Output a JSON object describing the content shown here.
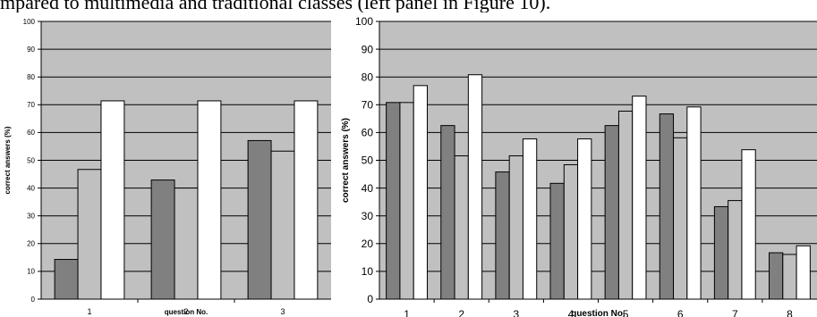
{
  "caption": "mpared to multimedia and traditional classes (left panel in Figure 10).",
  "chart_data": [
    {
      "type": "bar",
      "panel": "left",
      "categories": [
        "1",
        "2",
        "3"
      ],
      "series": [
        {
          "values": [
            14.3,
            42.9,
            57.1
          ],
          "color": "#808080"
        },
        {
          "values": [
            46.7,
            40.0,
            53.3
          ],
          "color": "#c0c0c0"
        },
        {
          "values": [
            71.4,
            71.4,
            71.4
          ],
          "color": "#ffffff"
        }
      ],
      "ylim": [
        0,
        100
      ],
      "yticks": [
        0,
        10,
        20,
        30,
        40,
        50,
        60,
        70,
        80,
        90,
        100
      ],
      "xlabel": "question No.",
      "ylabel": "correct answers (%)",
      "grid": true,
      "plot_background": "#c0c0c0"
    },
    {
      "type": "bar",
      "panel": "right",
      "categories": [
        "1",
        "2",
        "3",
        "4",
        "5",
        "6",
        "7",
        "8"
      ],
      "series": [
        {
          "values": [
            70.8,
            62.5,
            45.8,
            41.7,
            62.5,
            66.7,
            33.3,
            16.7
          ],
          "color": "#808080"
        },
        {
          "values": [
            70.8,
            51.6,
            51.6,
            48.4,
            67.7,
            58.1,
            35.5,
            16.1
          ],
          "color": "#c0c0c0"
        },
        {
          "values": [
            76.9,
            80.8,
            57.7,
            57.7,
            73.1,
            69.2,
            53.8,
            19.2
          ],
          "color": "#ffffff"
        }
      ],
      "ylim": [
        0,
        100
      ],
      "yticks": [
        0,
        10,
        20,
        30,
        40,
        50,
        60,
        70,
        80,
        90,
        100
      ],
      "xlabel": "question No.",
      "ylabel": "correct answers (%)",
      "grid": true,
      "plot_background": "#c0c0c0"
    }
  ]
}
